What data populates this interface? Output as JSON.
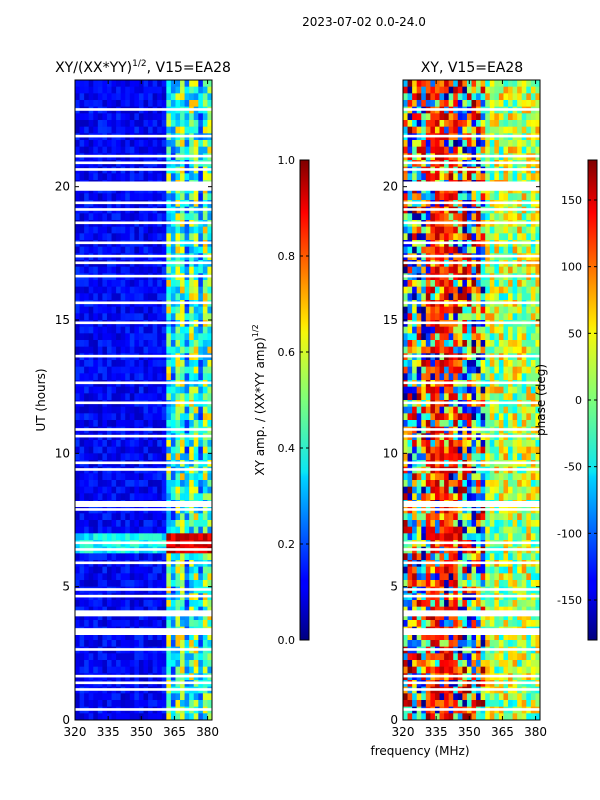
{
  "suptitle": "2023-07-02 0.0-24.0",
  "colors": {
    "nan_rows": "#ffffff",
    "background": "#ffffff"
  },
  "chart_data": [
    {
      "type": "heatmap",
      "title": "XY/(XX*YY)^{1/2}, V15=EA28",
      "title_base": "XY/(XX*YY)",
      "title_exp": "1/2",
      "title_tail": ", V15=EA28",
      "xlabel": "",
      "ylabel": "UT (hours)",
      "xlim": [
        320,
        382
      ],
      "ylim": [
        0,
        24
      ],
      "xticks": [
        "320",
        "335",
        "350",
        "365",
        "380"
      ],
      "yticks": [
        "0",
        "5",
        "10",
        "15",
        "20"
      ],
      "colorbar": {
        "label": "XY amp. / (XX*YY amp)^{1/2}",
        "label_base": "XY amp. / (XX*YY amp)",
        "label_exp": "1/2",
        "range": [
          0.0,
          1.0
        ],
        "ticks": [
          "0.0",
          "0.2",
          "0.4",
          "0.6",
          "0.8",
          "1.0"
        ]
      }
    },
    {
      "type": "heatmap",
      "title": "XY, V15=EA28",
      "xlabel": "frequency (MHz)",
      "ylabel": "",
      "xlim": [
        320,
        382
      ],
      "ylim": [
        0,
        24
      ],
      "xticks": [
        "320",
        "335",
        "350",
        "365",
        "380"
      ],
      "yticks": [
        "0",
        "5",
        "10",
        "15",
        "20"
      ],
      "colorbar": {
        "label": "phase (deg)",
        "range": [
          -180,
          180
        ],
        "ticks": [
          "-150",
          "-100",
          "-50",
          "0",
          "50",
          "100",
          "150"
        ]
      }
    }
  ]
}
